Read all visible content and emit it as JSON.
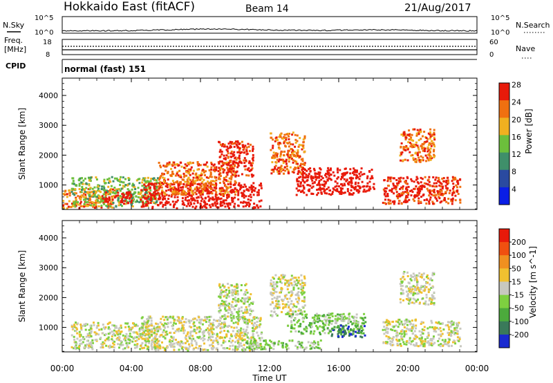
{
  "header": {
    "station": "Hokkaido East (fitACF)",
    "beam": "Beam 14",
    "date": "21/Aug/2017"
  },
  "top_panels": {
    "nsky_label": "N.Sky",
    "nsearch_label": "N.Search",
    "nsky_ticks": [
      "10^5",
      "10^0"
    ],
    "nsearch_ticks": [
      "10^5",
      "10^0"
    ],
    "freq_label": "Freq.",
    "freq_unit": "[MHz]",
    "freq_ticks": [
      "18",
      "8"
    ],
    "nave_label": "Nave",
    "nave_ticks": [
      "60",
      "0"
    ],
    "cpid_label": "CPID",
    "cpid_value": "normal (fast) 151"
  },
  "chart_data": [
    {
      "type": "heatmap",
      "quantity": "power",
      "ylabel": "Slant Range [km]",
      "yticks": [
        "1000",
        "2000",
        "3000",
        "4000"
      ],
      "ylim": [
        180,
        4580
      ],
      "colorbar_label": "Power [dB]",
      "colorbar_ticks": [
        "4",
        "8",
        "12",
        "16",
        "20",
        "24",
        "28"
      ],
      "colorbar_colors": [
        "#0a1ee6",
        "#2a4aa0",
        "#3f8f6a",
        "#6cbf3c",
        "#f0b020",
        "#f07010",
        "#e81a0a"
      ],
      "regions": [
        {
          "t0": 0.0,
          "t1": 3.0,
          "r0": 250,
          "r1": 900,
          "level": 5
        },
        {
          "t0": 0.5,
          "t1": 5.5,
          "r0": 300,
          "r1": 1300,
          "level": 3
        },
        {
          "t0": 2.3,
          "t1": 4.0,
          "r0": 400,
          "r1": 800,
          "level": 7
        },
        {
          "t0": 4.5,
          "t1": 11.5,
          "r0": 250,
          "r1": 1100,
          "level": 7
        },
        {
          "t0": 5.5,
          "t1": 10.0,
          "r0": 700,
          "r1": 1800,
          "level": 5
        },
        {
          "t0": 9.0,
          "t1": 11.0,
          "r0": 1300,
          "r1": 2500,
          "level": 6
        },
        {
          "t0": 12.0,
          "t1": 14.0,
          "r0": 1400,
          "r1": 2800,
          "level": 5
        },
        {
          "t0": 13.5,
          "t1": 18.0,
          "r0": 700,
          "r1": 1600,
          "level": 7
        },
        {
          "t0": 18.5,
          "t1": 23.0,
          "r0": 400,
          "r1": 1300,
          "level": 6
        },
        {
          "t0": 19.5,
          "t1": 21.5,
          "r0": 1800,
          "r1": 2900,
          "level": 5
        }
      ]
    },
    {
      "type": "heatmap",
      "quantity": "velocity",
      "xlabel": "Time UT",
      "xticks": [
        "00:00",
        "04:00",
        "08:00",
        "12:00",
        "16:00",
        "20:00",
        "00:00"
      ],
      "xlim": [
        0,
        24
      ],
      "ylabel": "Slant Range [km]",
      "yticks": [
        "1000",
        "2000",
        "3000",
        "4000"
      ],
      "ylim": [
        180,
        4580
      ],
      "colorbar_label": "Velocity [m s^-1]",
      "colorbar_ticks": [
        "200",
        "100",
        "50",
        "15",
        "-15",
        "-50",
        "-100",
        "-200"
      ],
      "colorbar_colors": [
        "#1a2ad0",
        "#3a7a5a",
        "#4caa3c",
        "#7ed040",
        "#c8c8c0",
        "#f0c030",
        "#f09020",
        "#f05010",
        "#e81a0a"
      ],
      "regions": [
        {
          "t0": 0.5,
          "t1": 5.5,
          "r0": 300,
          "r1": 1200,
          "level": 4
        },
        {
          "t0": 4.5,
          "t1": 11.5,
          "r0": 250,
          "r1": 1400,
          "level": 4
        },
        {
          "t0": 9.0,
          "t1": 11.0,
          "r0": 1300,
          "r1": 2500,
          "level": 4
        },
        {
          "t0": 12.0,
          "t1": 14.0,
          "r0": 1400,
          "r1": 2800,
          "level": 4
        },
        {
          "t0": 13.0,
          "t1": 17.5,
          "r0": 800,
          "r1": 1500,
          "level": 3
        },
        {
          "t0": 15.5,
          "t1": 17.5,
          "r0": 700,
          "r1": 1100,
          "level": 1
        },
        {
          "t0": 10.5,
          "t1": 15.0,
          "r0": 300,
          "r1": 600,
          "level": 3
        },
        {
          "t0": 18.5,
          "t1": 23.0,
          "r0": 400,
          "r1": 1300,
          "level": 4
        },
        {
          "t0": 19.5,
          "t1": 21.5,
          "r0": 1800,
          "r1": 2900,
          "level": 4
        }
      ]
    }
  ]
}
